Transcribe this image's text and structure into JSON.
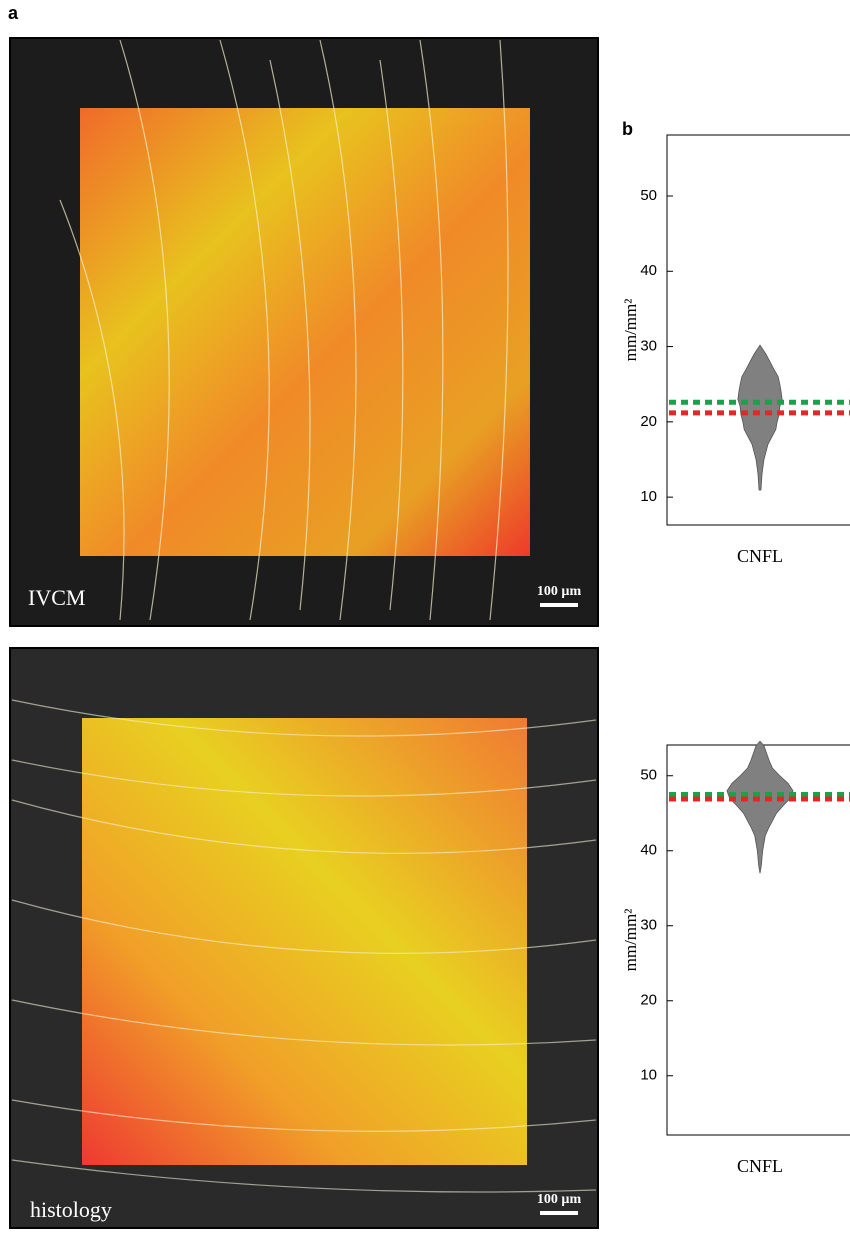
{
  "panel_labels": [
    "a",
    "b"
  ],
  "images": [
    {
      "label": "IVCM",
      "scale_bar": "100 µm"
    },
    {
      "label": "histology",
      "scale_bar": "100 µm"
    }
  ],
  "chart_data": [
    {
      "type": "violin",
      "ylabel": "mm/mm²",
      "category": "CNFL",
      "ylim": [
        6.3,
        58.1
      ],
      "yticks": [
        10,
        20,
        30,
        40,
        50
      ],
      "violin": {
        "color": "#808080",
        "y": [
          30.2,
          29,
          28,
          27,
          26,
          25,
          24,
          23,
          22,
          21,
          20,
          19,
          18,
          17,
          16,
          15,
          13,
          11,
          10.9
        ],
        "density": [
          0,
          0.18,
          0.3,
          0.42,
          0.55,
          0.6,
          0.64,
          0.67,
          0.6,
          0.58,
          0.52,
          0.48,
          0.36,
          0.24,
          0.18,
          0.12,
          0.06,
          0.03,
          0
        ]
      },
      "reference_lines": [
        {
          "color": "#1aa14a",
          "value": 22.6
        },
        {
          "color": "#e02828",
          "value": 21.2
        }
      ]
    },
    {
      "type": "violin",
      "ylabel": "mm/mm²",
      "category": "CNFL",
      "ylim": [
        2.1,
        54.1
      ],
      "yticks": [
        10,
        20,
        30,
        40,
        50
      ],
      "violin": {
        "color": "#808080",
        "y": [
          54.6,
          54,
          53,
          52,
          51,
          50,
          49,
          48,
          47,
          46,
          45,
          44,
          43,
          42,
          41,
          40,
          39,
          38,
          37
        ],
        "density": [
          0,
          0.12,
          0.2,
          0.28,
          0.38,
          0.6,
          0.85,
          1,
          0.92,
          0.7,
          0.5,
          0.38,
          0.26,
          0.16,
          0.12,
          0.08,
          0.06,
          0.04,
          0
        ]
      },
      "reference_lines": [
        {
          "color": "#1aa14a",
          "value": 47.5
        },
        {
          "color": "#e02828",
          "value": 46.9
        }
      ]
    }
  ]
}
